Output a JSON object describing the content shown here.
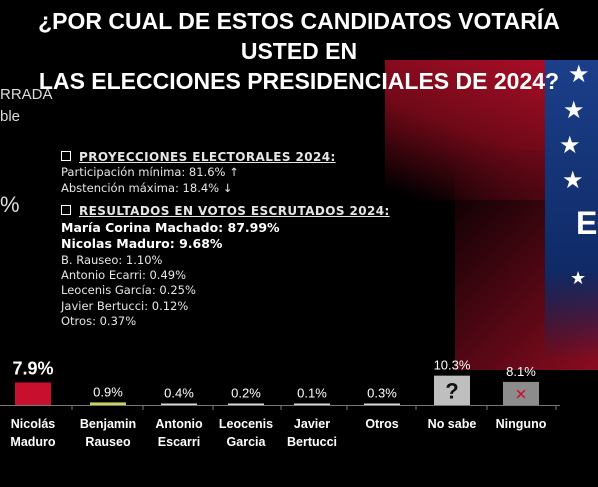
{
  "title": {
    "line1": "¿POR CUAL DE ESTOS CANDIDATOS VOTARÍA USTED EN",
    "line2": "LAS ELECCIONES PRESIDENCIALES DE 2024?"
  },
  "left_fragments": {
    "line1": "RRADA",
    "line2": "ble",
    "line3": "%"
  },
  "projections": {
    "heading": "PROYECCIONES ELECTORALES 2024:",
    "participation": "Participación mínima: 81.6% ↑",
    "abstention": "Abstención máxima: 18.4% ↓"
  },
  "results": {
    "heading": "RESULTADOS EN VOTOS ESCRUTADOS 2024:",
    "lines": [
      "María Corina Machado: 87.99%",
      "Nicolas Maduro: 9.68%",
      "B. Rauseo: 1.10%",
      "Antonio Ecarri: 0.49%",
      "Leocenis García: 0.25%",
      "Javier Bertucci: 0.12%",
      "Otros: 0.37%"
    ]
  },
  "big_letter": "E",
  "chart_data": {
    "type": "bar",
    "categories": [
      [
        "Nicolás",
        "Maduro"
      ],
      [
        "Benjamin",
        "Rauseo"
      ],
      [
        "Antonio",
        "Escarri"
      ],
      [
        "Leocenis",
        "Garcia"
      ],
      [
        "Javier",
        "Bertucci"
      ],
      [
        "Otros"
      ],
      [
        "No sabe"
      ],
      [
        "Ninguno"
      ]
    ],
    "values": [
      7.9,
      0.9,
      0.4,
      0.2,
      0.1,
      0.3,
      10.3,
      8.1
    ],
    "value_labels": [
      "7.9%",
      "0.9%",
      "0.4%",
      "0.2%",
      "0.1%",
      "0.3%",
      "10.3%",
      "8.1%"
    ],
    "bar_colors": [
      "#c8102e",
      "#c9d65a",
      "#d9d9d9",
      "#d9d9d9",
      "#d9d9d9",
      "#d9d9d9",
      "#bfbfbf",
      "#8c8c8c"
    ],
    "no_sabe_symbol": "?",
    "ninguno_symbol": "✕"
  }
}
